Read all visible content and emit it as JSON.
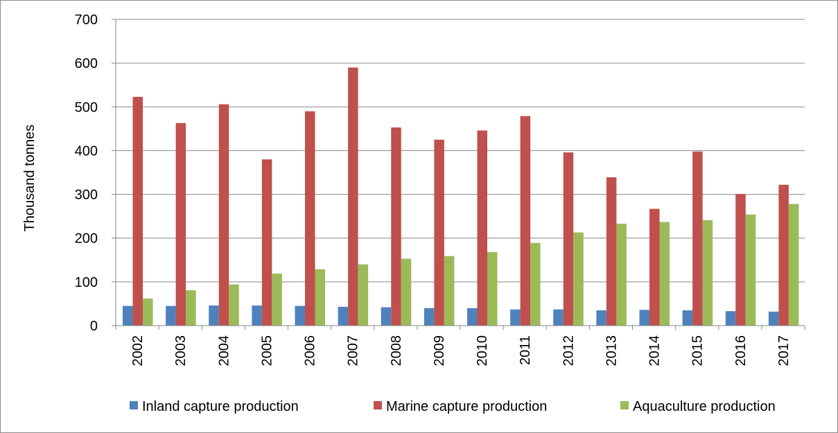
{
  "chart_data": {
    "type": "bar",
    "title": "",
    "xlabel": "",
    "ylabel": "Thousand tonnes",
    "ylim": [
      0,
      700
    ],
    "yticks": [
      0,
      100,
      200,
      300,
      400,
      500,
      600,
      700
    ],
    "grid": true,
    "legend_position": "bottom",
    "categories": [
      "2002",
      "2003",
      "2004",
      "2005",
      "2006",
      "2007",
      "2008",
      "2009",
      "2010",
      "2011",
      "2012",
      "2013",
      "2014",
      "2015",
      "2016",
      "2017"
    ],
    "series": [
      {
        "name": "Inland capture production",
        "color": "#4f81bd",
        "values": [
          45,
          45,
          46,
          46,
          45,
          43,
          42,
          40,
          40,
          37,
          37,
          35,
          36,
          35,
          33,
          32
        ]
      },
      {
        "name": "Marine capture production",
        "color": "#c0504d",
        "values": [
          523,
          463,
          506,
          380,
          490,
          590,
          453,
          425,
          446,
          479,
          396,
          339,
          267,
          398,
          301,
          322
        ]
      },
      {
        "name": "Aquaculture production",
        "color": "#9bbb59",
        "values": [
          62,
          81,
          94,
          119,
          129,
          140,
          153,
          159,
          168,
          189,
          213,
          233,
          237,
          241,
          254,
          278
        ]
      }
    ]
  }
}
